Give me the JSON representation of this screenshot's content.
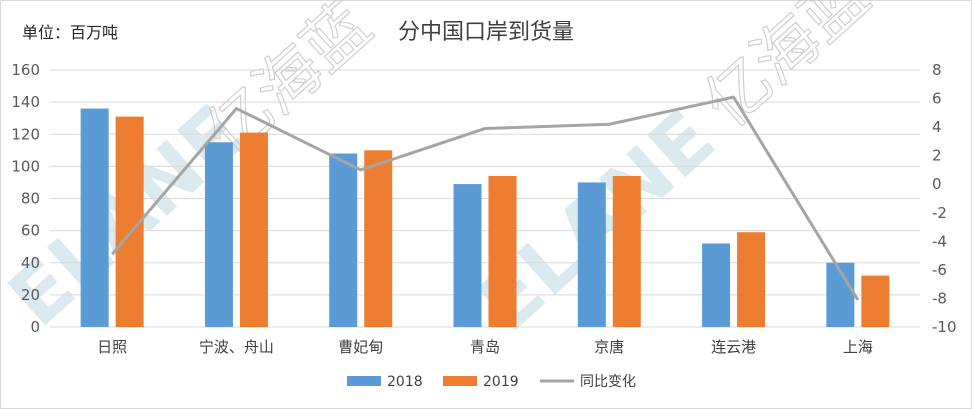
{
  "chart_data": {
    "type": "bar",
    "title": "分中国口岸到货量",
    "unit_label": "单位：百万吨",
    "categories": [
      "日照",
      "宁波、舟山",
      "曹妃甸",
      "青岛",
      "京唐",
      "连云港",
      "上海"
    ],
    "series": [
      {
        "name": "2018",
        "type": "bar",
        "axis": "left",
        "color": "#5b9bd5",
        "values": [
          136,
          115,
          108,
          89,
          90,
          52,
          40
        ]
      },
      {
        "name": "2019",
        "type": "bar",
        "axis": "left",
        "color": "#ed7d31",
        "values": [
          131,
          121,
          110,
          94,
          94,
          59,
          32
        ]
      },
      {
        "name": "同比变化",
        "type": "line",
        "axis": "right",
        "color": "#a5a5a5",
        "values": [
          -4.9,
          5.3,
          1.0,
          3.9,
          4.2,
          6.1,
          -8.1
        ]
      }
    ],
    "ylim_left": [
      0,
      160
    ],
    "yticks_left": [
      "0",
      "20",
      "40",
      "60",
      "80",
      "100",
      "120",
      "140",
      "160"
    ],
    "ylim_right": [
      -10,
      8
    ],
    "yticks_right": [
      "-10",
      "-8",
      "-6",
      "-4",
      "-2",
      "0",
      "2",
      "4",
      "6",
      "8"
    ],
    "grid": true,
    "legend_position": "bottom"
  },
  "watermark": {
    "latin": "ELANE",
    "chinese": "亿海蓝"
  }
}
